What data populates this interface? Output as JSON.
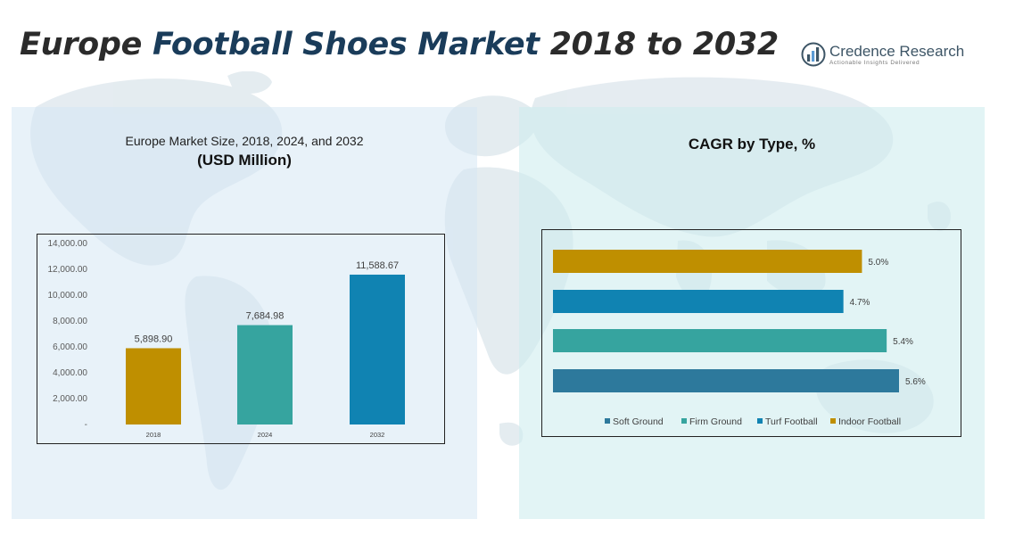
{
  "header": {
    "title_part1": "Europe ",
    "title_part2": "Football Shoes Market",
    "title_part3": " 2018 to 2032"
  },
  "logo": {
    "name": "Credence Research",
    "tagline": "Actionable Insights Delivered"
  },
  "left_panel": {
    "subtitle": "Europe Market Size, 2018, 2024, and 2032",
    "unit": "(USD Million)"
  },
  "right_panel": {
    "title": "CAGR by Type, %"
  },
  "colors": {
    "gold": "#bf8f00",
    "teal": "#36a49f",
    "blue": "#1083b2",
    "steel": "#2d799c"
  },
  "chart_data": [
    {
      "type": "bar",
      "title": "Europe Market Size, 2018, 2024, and 2032",
      "categories": [
        "2018",
        "2024",
        "2032"
      ],
      "values": [
        5898.9,
        7684.98,
        11588.67
      ],
      "data_labels": [
        "5,898.90",
        "7,684.98",
        "11,588.67"
      ],
      "bar_colors": [
        "#bf8f00",
        "#36a49f",
        "#1083b2"
      ],
      "ylim": [
        0,
        14000
      ],
      "y_ticks": [
        0,
        2000,
        4000,
        6000,
        8000,
        10000,
        12000,
        14000
      ],
      "y_tick_labels": [
        "-",
        "2,000.00",
        "4,000.00",
        "6,000.00",
        "8,000.00",
        "10,000.00",
        "12,000.00",
        "14,000.00"
      ],
      "grid": false
    },
    {
      "type": "bar",
      "orientation": "horizontal",
      "title": "CAGR by Type, %",
      "series": [
        {
          "name": "Soft Ground",
          "value": 5.6,
          "label": "5.6%",
          "color": "#2d799c"
        },
        {
          "name": "Firm Ground",
          "value": 5.4,
          "label": "5.4%",
          "color": "#36a49f"
        },
        {
          "name": "Turf Football",
          "value": 4.7,
          "label": "4.7%",
          "color": "#1083b2"
        },
        {
          "name": "Indoor Football",
          "value": 5.0,
          "label": "5.0%",
          "color": "#bf8f00"
        }
      ],
      "legend_position": "bottom",
      "grid": false
    }
  ]
}
